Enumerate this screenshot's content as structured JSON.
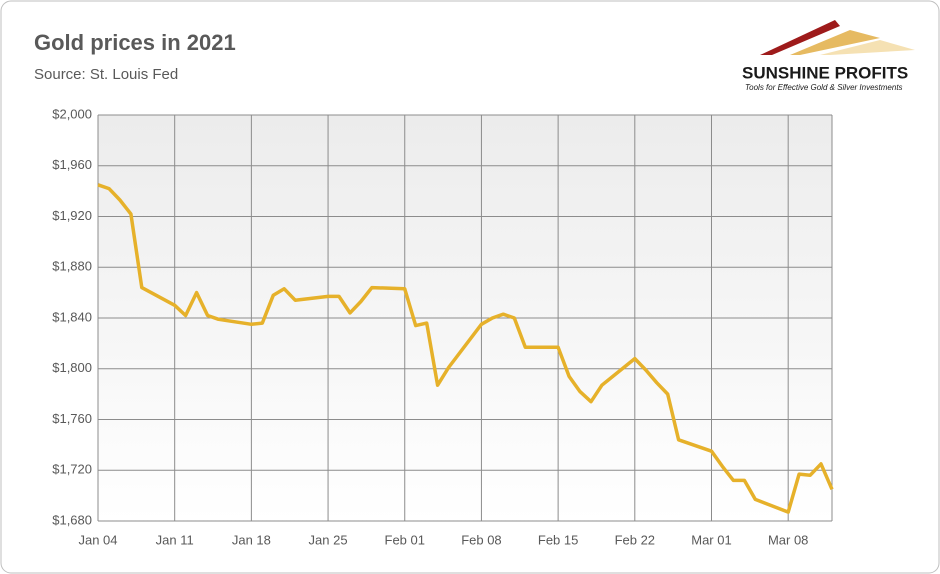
{
  "chart_data": {
    "type": "line",
    "title": "Gold prices in 2021",
    "subtitle": "Source: St. Louis Fed",
    "logo": {
      "name": "SUNSHINE PROFITS",
      "tagline": "Tools for Effective Gold & Silver Investments"
    },
    "x": [
      "Jan 04",
      "Jan 05",
      "Jan 06",
      "Jan 07",
      "Jan 08",
      "Jan 11",
      "Jan 12",
      "Jan 13",
      "Jan 14",
      "Jan 15",
      "Jan 18",
      "Jan 19",
      "Jan 20",
      "Jan 21",
      "Jan 22",
      "Jan 25",
      "Jan 26",
      "Jan 27",
      "Jan 28",
      "Jan 29",
      "Feb 01",
      "Feb 02",
      "Feb 03",
      "Feb 04",
      "Feb 05",
      "Feb 08",
      "Feb 09",
      "Feb 10",
      "Feb 11",
      "Feb 12",
      "Feb 15",
      "Feb 16",
      "Feb 17",
      "Feb 18",
      "Feb 19",
      "Feb 22",
      "Feb 23",
      "Feb 24",
      "Feb 25",
      "Feb 26",
      "Mar 01",
      "Mar 02",
      "Mar 03",
      "Mar 04",
      "Mar 05",
      "Mar 08",
      "Mar 09",
      "Mar 10",
      "Mar 11",
      "Mar 12"
    ],
    "values": [
      1945,
      1942,
      1933,
      1922,
      1864,
      1850,
      1842,
      1860,
      1842,
      1839,
      1835,
      1836,
      1858,
      1863,
      1854,
      1857,
      1857,
      1844,
      1853,
      1864,
      1863,
      1834,
      1836,
      1787,
      1801,
      1835,
      1840,
      1843,
      1840,
      1817,
      1817,
      1794,
      1782,
      1774,
      1787,
      1808,
      1799,
      1789,
      1780,
      1744,
      1735,
      1723,
      1712,
      1712,
      1697,
      1687,
      1717,
      1716,
      1725,
      1705
    ],
    "color": "#e6b12a",
    "xlim": [
      "Jan 04",
      "Mar 12"
    ],
    "xticks": [
      "Jan 04",
      "Jan 11",
      "Jan 18",
      "Jan 25",
      "Feb 01",
      "Feb 08",
      "Feb 15",
      "Feb 22",
      "Mar 01",
      "Mar 08"
    ],
    "ylim": [
      1680,
      2000
    ],
    "yticks": [
      {
        "value": 1680,
        "label": "$1,680"
      },
      {
        "value": 1720,
        "label": "$1,720"
      },
      {
        "value": 1760,
        "label": "$1,760"
      },
      {
        "value": 1800,
        "label": "$1,800"
      },
      {
        "value": 1840,
        "label": "$1,840"
      },
      {
        "value": 1880,
        "label": "$1,880"
      },
      {
        "value": 1920,
        "label": "$1,920"
      },
      {
        "value": 1960,
        "label": "$1,960"
      },
      {
        "value": 2000,
        "label": "$2,000"
      }
    ],
    "grid": true
  }
}
